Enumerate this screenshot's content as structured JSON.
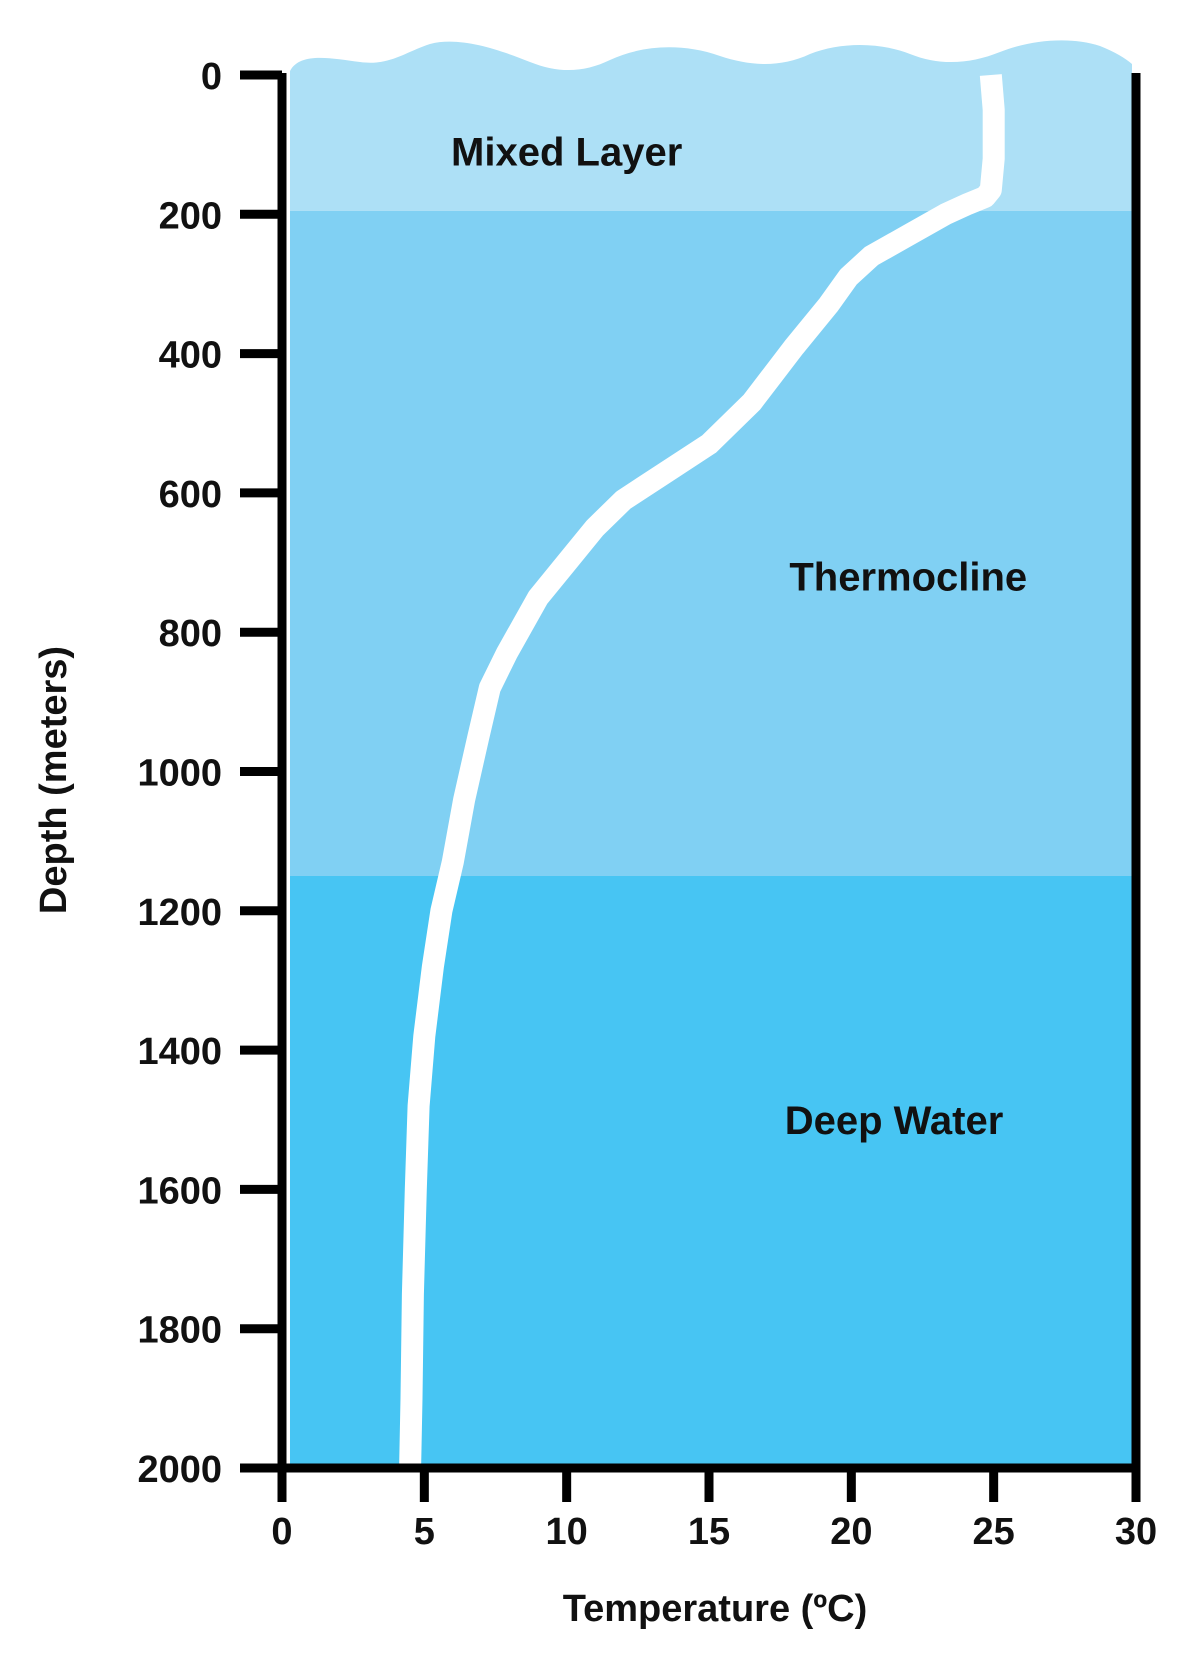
{
  "chart_data": {
    "type": "line",
    "xlabel": "Temperature (ºC)",
    "ylabel": "Depth (meters)",
    "xlim": [
      0,
      30
    ],
    "ylim": [
      2000,
      0
    ],
    "y_inverted": true,
    "x_ticks": [
      0,
      5,
      10,
      15,
      20,
      25,
      30
    ],
    "y_ticks": [
      0,
      200,
      400,
      600,
      800,
      1000,
      1200,
      1400,
      1600,
      1800,
      2000
    ],
    "grid": false,
    "layers": [
      {
        "name": "Mixed Layer",
        "from_depth": 0,
        "to_depth": 195,
        "color": "#ade0f6",
        "label_x": 10,
        "label_y": 110
      },
      {
        "name": "Thermocline",
        "from_depth": 195,
        "to_depth": 1150,
        "color": "#80d0f3",
        "label_x": 22,
        "label_y": 720
      },
      {
        "name": "Deep Water",
        "from_depth": 1150,
        "to_depth": 2000,
        "color": "#47c5f3",
        "label_x": 21.5,
        "label_y": 1500
      }
    ],
    "series": [
      {
        "color": "#ffffff",
        "x": [
          24.9,
          25.0,
          25.0,
          24.9,
          24.7,
          24.1,
          23.3,
          22.0,
          20.7,
          19.9,
          19.2,
          18.0,
          16.5,
          15.0,
          13.5,
          12.0,
          11.0,
          10.0,
          9.0,
          7.9,
          7.3,
          6.9,
          6.4,
          6.0,
          5.6,
          5.3,
          5.0,
          4.8,
          4.7,
          4.6,
          4.55,
          4.5
        ],
        "y": [
          0,
          50,
          120,
          165,
          175,
          185,
          200,
          230,
          260,
          290,
          330,
          390,
          470,
          530,
          570,
          610,
          650,
          700,
          750,
          830,
          880,
          950,
          1040,
          1130,
          1200,
          1280,
          1380,
          1480,
          1600,
          1750,
          1900,
          2000
        ]
      }
    ]
  }
}
